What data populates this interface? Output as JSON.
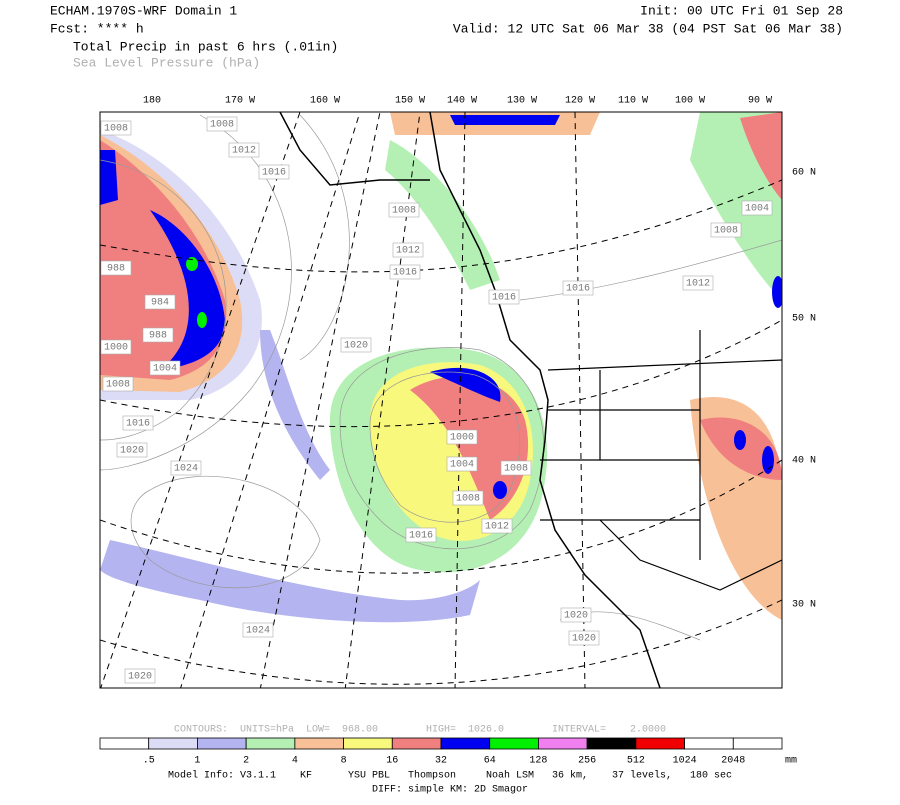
{
  "header": {
    "title": "ECHAM.1970S-WRF Domain 1",
    "init": "Init: 00 UTC Fri 01 Sep 28",
    "fcst": "Fcst: **** h",
    "valid": "Valid: 12 UTC Sat 06 Mar 38 (04 PST Sat 06 Mar 38)",
    "field1": "Total Precip in past 6 hrs (.01in)",
    "field2": "Sea Level Pressure (hPa)"
  },
  "map": {
    "lon_labels": [
      "180",
      "170 W",
      "160 W",
      "150 W",
      "140 W",
      "130 W",
      "120 W",
      "110 W",
      "100 W",
      "90 W"
    ],
    "lat_labels": [
      "60 N",
      "50 N",
      "40 N",
      "30 N"
    ],
    "pressure_labels": [
      1008,
      1008,
      1012,
      1016,
      1008,
      1012,
      1016,
      1016,
      1016,
      1012,
      1004,
      1008,
      1020,
      1000,
      1004,
      1008,
      1016,
      1020,
      1024,
      1000,
      1004,
      1008,
      1008,
      1012,
      1016,
      1020,
      1020,
      1024,
      1020,
      988,
      984,
      988
    ]
  },
  "contour_info": "CONTOURS:  UNITS=hPa  LOW=  968.00        HIGH=  1026.0        INTERVAL=    2.0000",
  "colorbar": {
    "colors": [
      "#ffffff",
      "#dcdcf6",
      "#b4b4f0",
      "#b4f0b4",
      "#f8c096",
      "#f8f87c",
      "#f08080",
      "#0000f0",
      "#00f000",
      "#f080f0",
      "#000000",
      "#f00000",
      "#ffffff",
      "#ffffff"
    ],
    "labels": [
      ".5",
      "1",
      "2",
      "4",
      "8",
      "16",
      "32",
      "64",
      "128",
      "256",
      "512",
      "1024",
      "2048"
    ],
    "unit": "mm"
  },
  "footer": {
    "model_info": "Model Info: V3.1.1    KF      YSU PBL   Thompson     Noah LSM   36 km,    37 levels,   180 sec",
    "diff": "DIFF: simple KM: 2D Smagor"
  }
}
